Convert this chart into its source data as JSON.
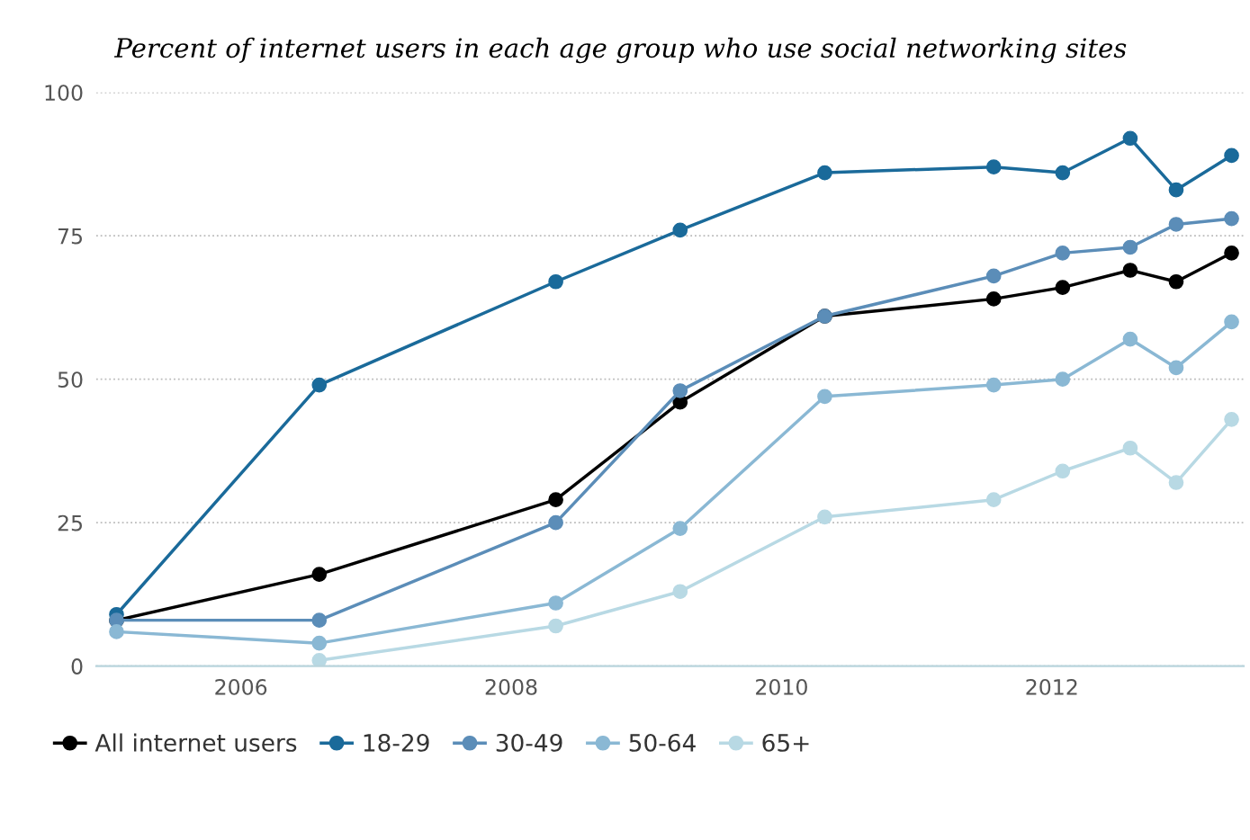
{
  "chart_data": {
    "type": "line",
    "title": "Percent of internet users in each age group who use social networking sites",
    "x": [
      2005.08,
      2006.58,
      2008.33,
      2009.25,
      2010.32,
      2011.57,
      2012.08,
      2012.58,
      2012.92,
      2013.33
    ],
    "series": [
      {
        "name": "All internet users",
        "color": "#000000",
        "values": [
          8,
          16,
          29,
          46,
          61,
          64,
          66,
          69,
          67,
          72
        ]
      },
      {
        "name": "18-29",
        "color": "#1a6a9a",
        "values": [
          9,
          49,
          67,
          76,
          86,
          87,
          86,
          92,
          83,
          89
        ]
      },
      {
        "name": "30-49",
        "color": "#5b8db8",
        "values": [
          8,
          8,
          25,
          48,
          61,
          68,
          72,
          73,
          77,
          78
        ]
      },
      {
        "name": "50-64",
        "color": "#8ab8d4",
        "values": [
          6,
          4,
          11,
          24,
          47,
          49,
          50,
          57,
          52,
          60
        ]
      },
      {
        "name": "65+",
        "color": "#b8d9e4",
        "values": [
          null,
          1,
          7,
          13,
          26,
          29,
          34,
          38,
          32,
          43
        ]
      }
    ],
    "xlim": [
      2004.93,
      2013.42
    ],
    "xticks": [
      2006,
      2008,
      2010,
      2012
    ],
    "ylim": [
      0,
      100
    ],
    "yticks": [
      0,
      25,
      50,
      75,
      100
    ],
    "grid": "y",
    "legend": "bottom",
    "marker": "circle",
    "line_style": "solid"
  }
}
